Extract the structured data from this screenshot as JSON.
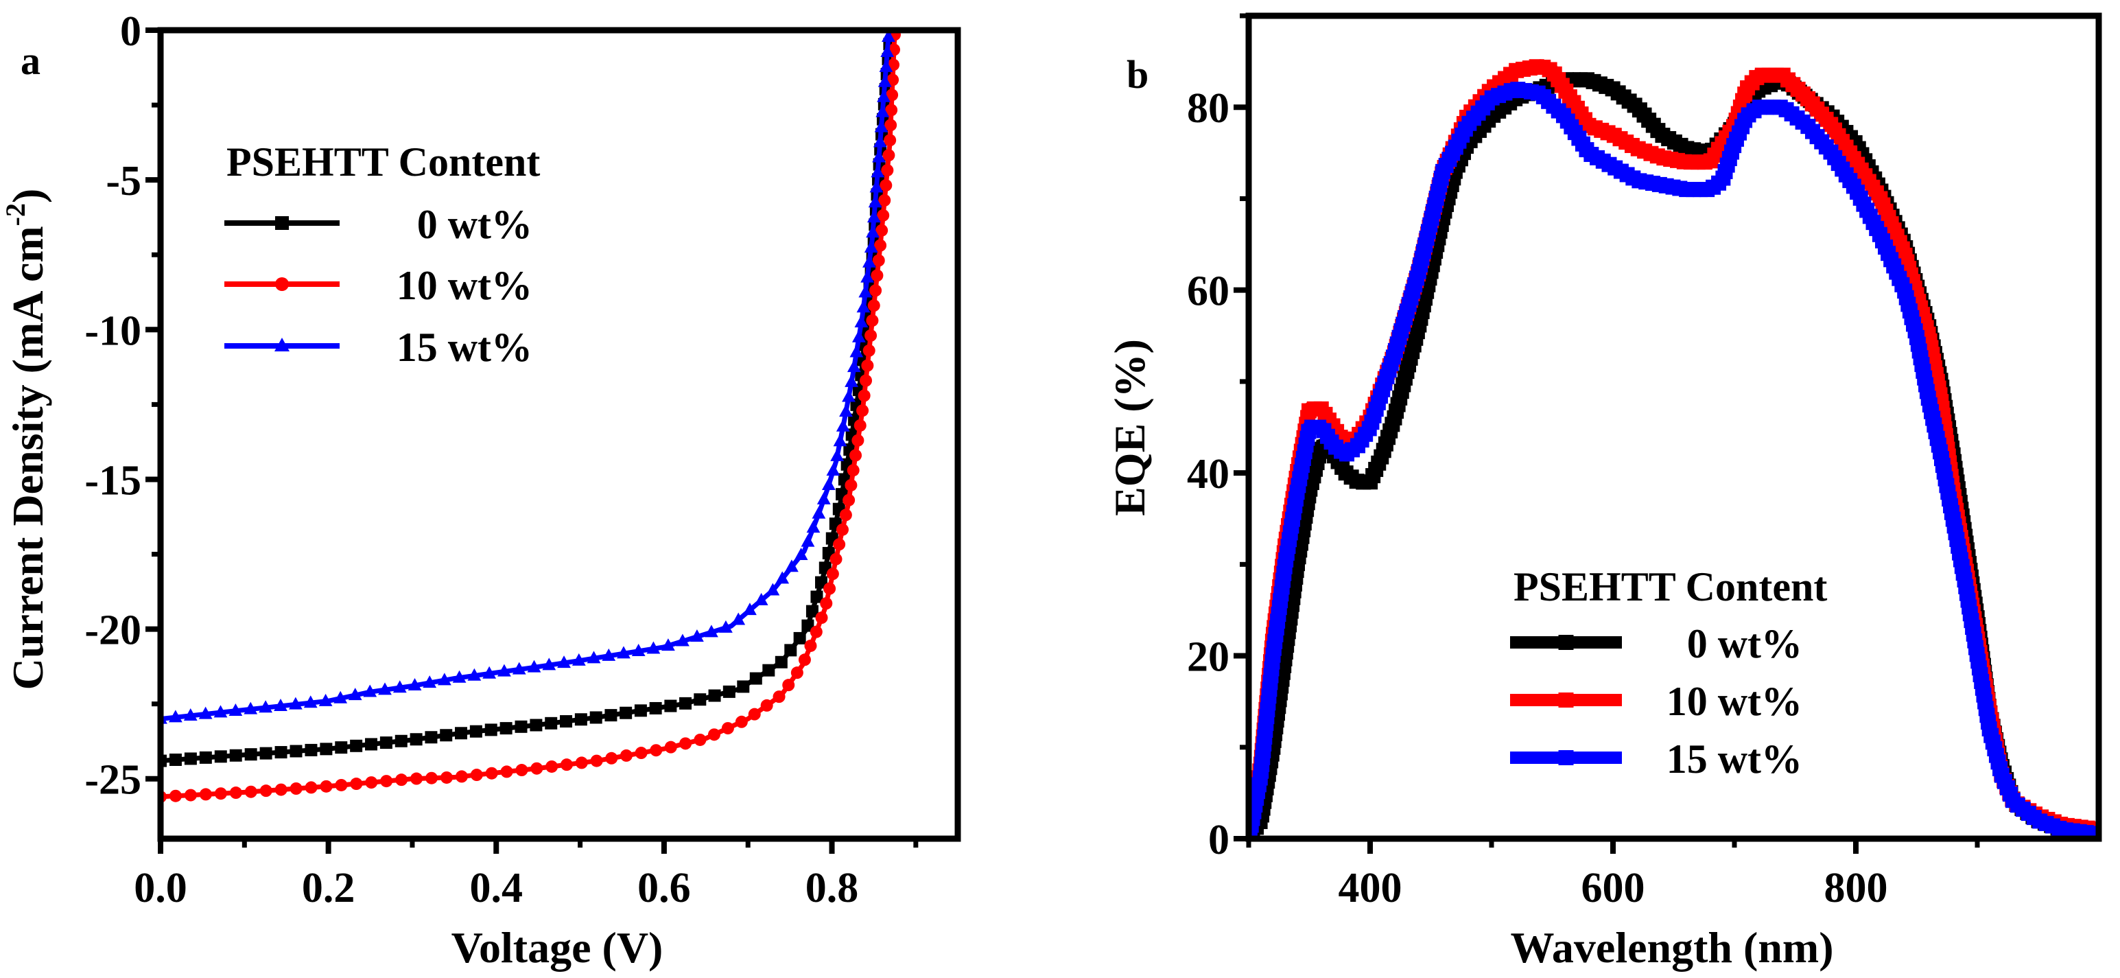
{
  "chart_data": [
    {
      "panel_label": "a",
      "type": "line",
      "xlabel": "Voltage (V)",
      "ylabel": "Current Density (mA cm",
      "ylabel_sup": "-2",
      "ylabel_end": ")",
      "xlim": [
        0,
        0.95
      ],
      "ylim": [
        -27,
        0
      ],
      "xticks": [
        0.0,
        0.2,
        0.4,
        0.6,
        0.8
      ],
      "xtick_labels": [
        "0.0",
        "0.2",
        "0.4",
        "0.6",
        "0.8"
      ],
      "yticks": [
        0,
        -5,
        -10,
        -15,
        -20,
        -25
      ],
      "ytick_labels": [
        "0",
        "-5",
        "-10",
        "-15",
        "-20",
        "-25"
      ],
      "legend_title": "PSEHTT Content",
      "legend_position": "upper-left",
      "series": [
        {
          "name": "0 wt%",
          "color": "#000000",
          "marker": "square",
          "x": [
            0,
            0.1,
            0.2,
            0.3,
            0.365,
            0.45,
            0.52,
            0.623,
            0.69,
            0.74,
            0.77,
            0.79,
            0.81,
            0.82,
            0.835,
            0.845,
            0.85,
            0.858,
            0.87
          ],
          "y": [
            -24.4,
            -24.2,
            -24.0,
            -23.7,
            -23.45,
            -23.2,
            -22.95,
            -22.5,
            -22.0,
            -21.1,
            -20.0,
            -18.2,
            -15.8,
            -14.2,
            -11.5,
            -8.5,
            -7.0,
            -3.9,
            0
          ]
        },
        {
          "name": "10 wt%",
          "color": "#ff0000",
          "marker": "circle",
          "x": [
            0,
            0.1,
            0.2,
            0.3,
            0.35,
            0.45,
            0.52,
            0.6,
            0.65,
            0.7,
            0.74,
            0.765,
            0.78,
            0.792,
            0.8,
            0.81,
            0.819,
            0.826,
            0.837,
            0.847,
            0.858,
            0.869,
            0.875
          ],
          "y": [
            -25.6,
            -25.45,
            -25.25,
            -25.0,
            -24.95,
            -24.65,
            -24.4,
            -24.0,
            -23.65,
            -23.0,
            -22.2,
            -21.2,
            -20.2,
            -19.3,
            -18.3,
            -17.0,
            -15.9,
            -14.6,
            -12.6,
            -10.0,
            -7.1,
            -3.8,
            0
          ]
        },
        {
          "name": "15 wt%",
          "color": "#0000ff",
          "marker": "triangle",
          "x": [
            0,
            0.1,
            0.2,
            0.25,
            0.3,
            0.35,
            0.44,
            0.5,
            0.6,
            0.68,
            0.73,
            0.767,
            0.785,
            0.795,
            0.805,
            0.815,
            0.825,
            0.836,
            0.848,
            0.857,
            0.868
          ],
          "y": [
            -23.0,
            -22.7,
            -22.4,
            -22.1,
            -21.9,
            -21.65,
            -21.3,
            -21.05,
            -20.6,
            -19.9,
            -18.7,
            -17.4,
            -16.1,
            -15.3,
            -14.4,
            -13.0,
            -11.5,
            -9.6,
            -7.0,
            -3.9,
            0
          ]
        }
      ]
    },
    {
      "panel_label": "b",
      "type": "line",
      "xlabel": "Wavelength (nm)",
      "ylabel": "EQE (%)",
      "xlim": [
        300,
        1000
      ],
      "ylim": [
        0,
        90
      ],
      "xticks": [
        400,
        600,
        800
      ],
      "xtick_labels": [
        "400",
        "600",
        "800"
      ],
      "yticks": [
        0,
        20,
        40,
        60,
        80
      ],
      "ytick_labels": [
        "0",
        "20",
        "40",
        "60",
        "80"
      ],
      "legend_title": "PSEHTT Content",
      "legend_position": "lower-center",
      "series": [
        {
          "name": "0 wt%",
          "color": "#000000",
          "marker": "square",
          "x": [
            300,
            310,
            320,
            330,
            340,
            350,
            360,
            370,
            380,
            390,
            400,
            410,
            420,
            430,
            440,
            450,
            460,
            470,
            480,
            500,
            520,
            540,
            560,
            580,
            600,
            620,
            640,
            660,
            680,
            700,
            720,
            740,
            760,
            780,
            800,
            820,
            840,
            860,
            870,
            880,
            890,
            900,
            910,
            920,
            930,
            950,
            970,
            1000
          ],
          "y": [
            0,
            2,
            10,
            20,
            30,
            38,
            43,
            42,
            40,
            39,
            39,
            42,
            46,
            51,
            56,
            62,
            68,
            73,
            76,
            79,
            81,
            82,
            83,
            83,
            82,
            80,
            77,
            75.5,
            75,
            78,
            82,
            83,
            81,
            79,
            76,
            71,
            65,
            56,
            50,
            42,
            33,
            24,
            14,
            8,
            4,
            2,
            1,
            1
          ]
        },
        {
          "name": "10 wt%",
          "color": "#ff0000",
          "marker": "square",
          "x": [
            300,
            310,
            320,
            330,
            340,
            350,
            360,
            370,
            380,
            390,
            400,
            420,
            440,
            460,
            480,
            500,
            520,
            540,
            550,
            560,
            580,
            600,
            620,
            640,
            660,
            680,
            700,
            710,
            720,
            740,
            760,
            780,
            800,
            820,
            840,
            860,
            870,
            880,
            890,
            900,
            910,
            920,
            930,
            950,
            970,
            1000
          ],
          "y": [
            0,
            8,
            22,
            32,
            40,
            47,
            47,
            45,
            43,
            44,
            46,
            53,
            62,
            73,
            79,
            82,
            84,
            84.5,
            84,
            82,
            78,
            77,
            75.5,
            74.5,
            74,
            74,
            78,
            82,
            83.5,
            83.5,
            81,
            78,
            74,
            70,
            64,
            55,
            48,
            38,
            30,
            22,
            14,
            7,
            4,
            2.5,
            1.5,
            1
          ]
        },
        {
          "name": "15 wt%",
          "color": "#0000ff",
          "marker": "square",
          "x": [
            300,
            310,
            320,
            330,
            340,
            350,
            360,
            370,
            380,
            390,
            400,
            420,
            440,
            460,
            480,
            500,
            520,
            540,
            560,
            580,
            600,
            620,
            640,
            660,
            680,
            690,
            700,
            710,
            720,
            740,
            760,
            780,
            800,
            820,
            840,
            850,
            860,
            870,
            880,
            890,
            900,
            910,
            920,
            930,
            950,
            970,
            1000
          ],
          "y": [
            0,
            7,
            20,
            30,
            38,
            45,
            45,
            43,
            42,
            43,
            45,
            53,
            62,
            73,
            78,
            81,
            82,
            81.5,
            79,
            75,
            73.5,
            72,
            71.5,
            71,
            71,
            72,
            76,
            79,
            80,
            80,
            78,
            75,
            71,
            66,
            60,
            55,
            48,
            42,
            35,
            28,
            20,
            12,
            7,
            4,
            2,
            1,
            0.5
          ]
        }
      ]
    }
  ]
}
